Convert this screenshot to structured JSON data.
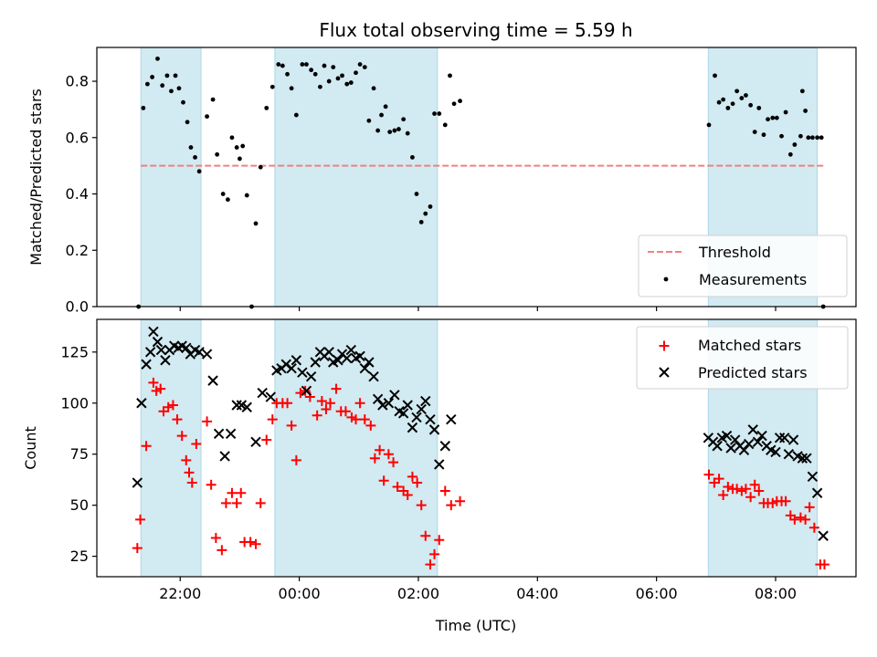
{
  "chart_data": {
    "title": "Flux total observing time = 5.59 h",
    "xlabel": "Time (UTC)",
    "x_unit": "hours UTC (values >= 24 are after midnight)",
    "x_ticks": [
      {
        "hour": 22,
        "label": "22:00"
      },
      {
        "hour": 24,
        "label": "00:00"
      },
      {
        "hour": 26,
        "label": "02:00"
      },
      {
        "hour": 28,
        "label": "04:00"
      },
      {
        "hour": 30,
        "label": "06:00"
      },
      {
        "hour": 32,
        "label": "08:00"
      }
    ],
    "xlim": [
      20.6,
      33.35
    ],
    "shaded_intervals": [
      [
        21.34,
        22.35
      ],
      [
        23.59,
        26.32
      ],
      [
        30.87,
        32.7
      ]
    ],
    "shade_color": "#add8e6",
    "panels": [
      {
        "type": "scatter",
        "ylabel": "Matched/Predicted stars",
        "ylim": [
          0,
          0.92
        ],
        "y_ticks": [
          0.0,
          0.2,
          0.4,
          0.6,
          0.8
        ],
        "y_tick_labels": [
          "0.0",
          "0.2",
          "0.4",
          "0.6",
          "0.8"
        ],
        "threshold": {
          "name": "Threshold",
          "value": 0.5,
          "x_range": [
            21.34,
            32.8
          ],
          "color": "#f08080"
        },
        "legend": [
          "Threshold",
          "Measurements"
        ],
        "legend_position": "lower right",
        "series": [
          {
            "name": "Measurements",
            "marker": "dot",
            "color": "#000000",
            "x": [
              21.3,
              21.38,
              21.45,
              21.53,
              21.62,
              21.7,
              21.78,
              21.85,
              21.92,
              21.98,
              22.05,
              22.12,
              22.18,
              22.25,
              22.32,
              22.45,
              22.55,
              22.62,
              22.72,
              22.8,
              22.87,
              22.95,
              23.0,
              23.05,
              23.12,
              23.2,
              23.27,
              23.35,
              23.45,
              23.55,
              23.65,
              23.72,
              23.8,
              23.87,
              23.95,
              24.05,
              24.12,
              24.2,
              24.27,
              24.35,
              24.42,
              24.5,
              24.57,
              24.65,
              24.72,
              24.8,
              24.87,
              24.95,
              25.02,
              25.1,
              25.17,
              25.25,
              25.32,
              25.38,
              25.45,
              25.52,
              25.6,
              25.67,
              25.75,
              25.82,
              25.9,
              25.97,
              26.05,
              26.12,
              26.2,
              26.27,
              26.35,
              26.45,
              26.53,
              26.6,
              26.7,
              32.8,
              30.88,
              30.98,
              31.05,
              31.12,
              31.2,
              31.28,
              31.35,
              31.43,
              31.5,
              31.58,
              31.65,
              31.72,
              31.8,
              31.87,
              31.95,
              32.02,
              32.1,
              32.17,
              32.25,
              32.32,
              32.42,
              32.45,
              32.5,
              32.55,
              32.62,
              32.7,
              32.77
            ],
            "y": [
              0.0,
              0.705,
              0.79,
              0.815,
              0.88,
              0.785,
              0.82,
              0.765,
              0.82,
              0.775,
              0.725,
              0.655,
              0.565,
              0.53,
              0.48,
              0.675,
              0.735,
              0.54,
              0.4,
              0.38,
              0.6,
              0.565,
              0.525,
              0.57,
              0.395,
              0.0,
              0.295,
              0.495,
              0.705,
              0.78,
              0.86,
              0.855,
              0.825,
              0.775,
              0.68,
              0.86,
              0.86,
              0.84,
              0.825,
              0.78,
              0.855,
              0.8,
              0.85,
              0.81,
              0.82,
              0.79,
              0.795,
              0.83,
              0.86,
              0.85,
              0.66,
              0.775,
              0.625,
              0.68,
              0.71,
              0.62,
              0.625,
              0.63,
              0.665,
              0.615,
              0.53,
              0.4,
              0.3,
              0.33,
              0.355,
              0.685,
              0.685,
              0.645,
              0.82,
              0.72,
              0.73,
              0.0,
              0.645,
              0.82,
              0.725,
              0.735,
              0.705,
              0.72,
              0.765,
              0.74,
              0.75,
              0.715,
              0.62,
              0.705,
              0.61,
              0.665,
              0.67,
              0.67,
              0.605,
              0.69,
              0.54,
              0.575,
              0.605,
              0.765,
              0.695,
              0.6,
              0.6,
              0.6,
              0.6
            ]
          }
        ]
      },
      {
        "type": "scatter",
        "ylabel": "Count",
        "ylim": [
          15,
          141
        ],
        "y_ticks": [
          25,
          50,
          75,
          100,
          125
        ],
        "y_tick_labels": [
          "25",
          "50",
          "75",
          "100",
          "125"
        ],
        "legend": [
          "Matched stars",
          "Predicted stars"
        ],
        "legend_position": "upper right",
        "series": [
          {
            "name": "Matched stars",
            "marker": "plus",
            "color": "#ff0000",
            "x": [
              21.28,
              21.33,
              21.43,
              21.55,
              21.6,
              21.67,
              21.72,
              21.8,
              21.88,
              21.95,
              22.03,
              22.1,
              22.15,
              22.2,
              22.27,
              22.45,
              22.52,
              22.6,
              22.7,
              22.77,
              22.87,
              22.95,
              23.02,
              23.08,
              23.18,
              23.27,
              23.35,
              23.45,
              23.55,
              23.62,
              23.72,
              23.8,
              23.87,
              23.95,
              24.02,
              24.1,
              24.18,
              24.3,
              24.38,
              24.45,
              24.52,
              24.62,
              24.7,
              24.78,
              24.88,
              24.95,
              25.02,
              25.1,
              25.2,
              25.27,
              25.35,
              25.42,
              25.5,
              25.58,
              25.65,
              25.75,
              25.82,
              25.9,
              25.98,
              26.05,
              26.12,
              26.2,
              26.27,
              26.35,
              26.45,
              26.55,
              26.7,
              30.88,
              30.97,
              31.05,
              31.12,
              31.2,
              31.28,
              31.35,
              31.43,
              31.5,
              31.58,
              31.65,
              31.72,
              31.8,
              31.87,
              31.95,
              32.02,
              32.1,
              32.17,
              32.25,
              32.32,
              32.42,
              32.5,
              32.57,
              32.65,
              32.75,
              32.82
            ],
            "y": [
              29,
              43,
              79,
              110,
              106,
              107,
              96,
              98,
              99,
              92,
              84,
              72,
              66,
              61,
              80,
              91,
              60,
              34,
              28,
              51,
              56,
              51,
              56,
              32,
              32,
              31,
              51,
              82,
              92,
              100,
              100,
              100,
              89,
              72,
              105,
              106,
              103,
              94,
              101,
              97,
              100,
              107,
              96,
              96,
              93,
              92,
              100,
              92,
              89,
              73,
              77,
              62,
              75,
              71,
              59,
              57,
              55,
              64,
              61,
              50,
              35,
              21,
              26,
              33,
              57,
              50,
              52,
              65,
              61,
              63,
              55,
              59,
              58,
              58,
              57,
              58,
              54,
              60,
              57,
              51,
              51,
              51,
              52,
              52,
              52,
              45,
              43,
              44,
              43,
              49,
              39,
              21,
              21
            ]
          },
          {
            "name": "Predicted stars",
            "marker": "x",
            "color": "#000000",
            "x": [
              21.28,
              21.35,
              21.43,
              21.5,
              21.55,
              21.62,
              21.68,
              21.75,
              21.82,
              21.9,
              21.97,
              22.03,
              22.1,
              22.17,
              22.25,
              22.32,
              22.45,
              22.55,
              22.65,
              22.75,
              22.85,
              22.95,
              23.03,
              23.12,
              23.27,
              23.38,
              23.52,
              23.62,
              23.7,
              23.78,
              23.87,
              23.95,
              24.05,
              24.12,
              24.2,
              24.27,
              24.35,
              24.42,
              24.5,
              24.57,
              24.65,
              24.72,
              24.8,
              24.87,
              24.95,
              25.02,
              25.1,
              25.17,
              25.25,
              25.32,
              25.4,
              25.5,
              25.6,
              25.68,
              25.75,
              25.82,
              25.9,
              25.97,
              26.05,
              26.12,
              26.2,
              26.27,
              26.35,
              26.45,
              26.55,
              30.87,
              30.95,
              31.02,
              31.1,
              31.18,
              31.25,
              31.32,
              31.4,
              31.47,
              31.55,
              31.62,
              31.7,
              31.77,
              31.85,
              31.92,
              32.0,
              32.07,
              32.15,
              32.22,
              32.3,
              32.37,
              32.45,
              32.52,
              32.62,
              32.7,
              32.8
            ],
            "y": [
              61,
              100,
              119,
              125,
              135,
              130,
              126,
              121,
              126,
              128,
              127,
              128,
              127,
              124,
              126,
              125,
              124,
              111,
              85,
              74,
              85,
              99,
              99,
              98,
              81,
              105,
              103,
              116,
              117,
              119,
              117,
              121,
              115,
              106,
              113,
              120,
              125,
              123,
              125,
              120,
              121,
              124,
              122,
              126,
              122,
              123,
              117,
              120,
              113,
              102,
              99,
              100,
              104,
              96,
              95,
              99,
              88,
              93,
              97,
              101,
              92,
              87,
              70,
              79,
              92,
              83,
              81,
              79,
              83,
              84,
              78,
              82,
              79,
              77,
              80,
              87,
              81,
              84,
              79,
              77,
              76,
              83,
              83,
              75,
              82,
              74,
              73,
              73,
              64,
              56,
              35
            ]
          }
        ]
      }
    ]
  }
}
